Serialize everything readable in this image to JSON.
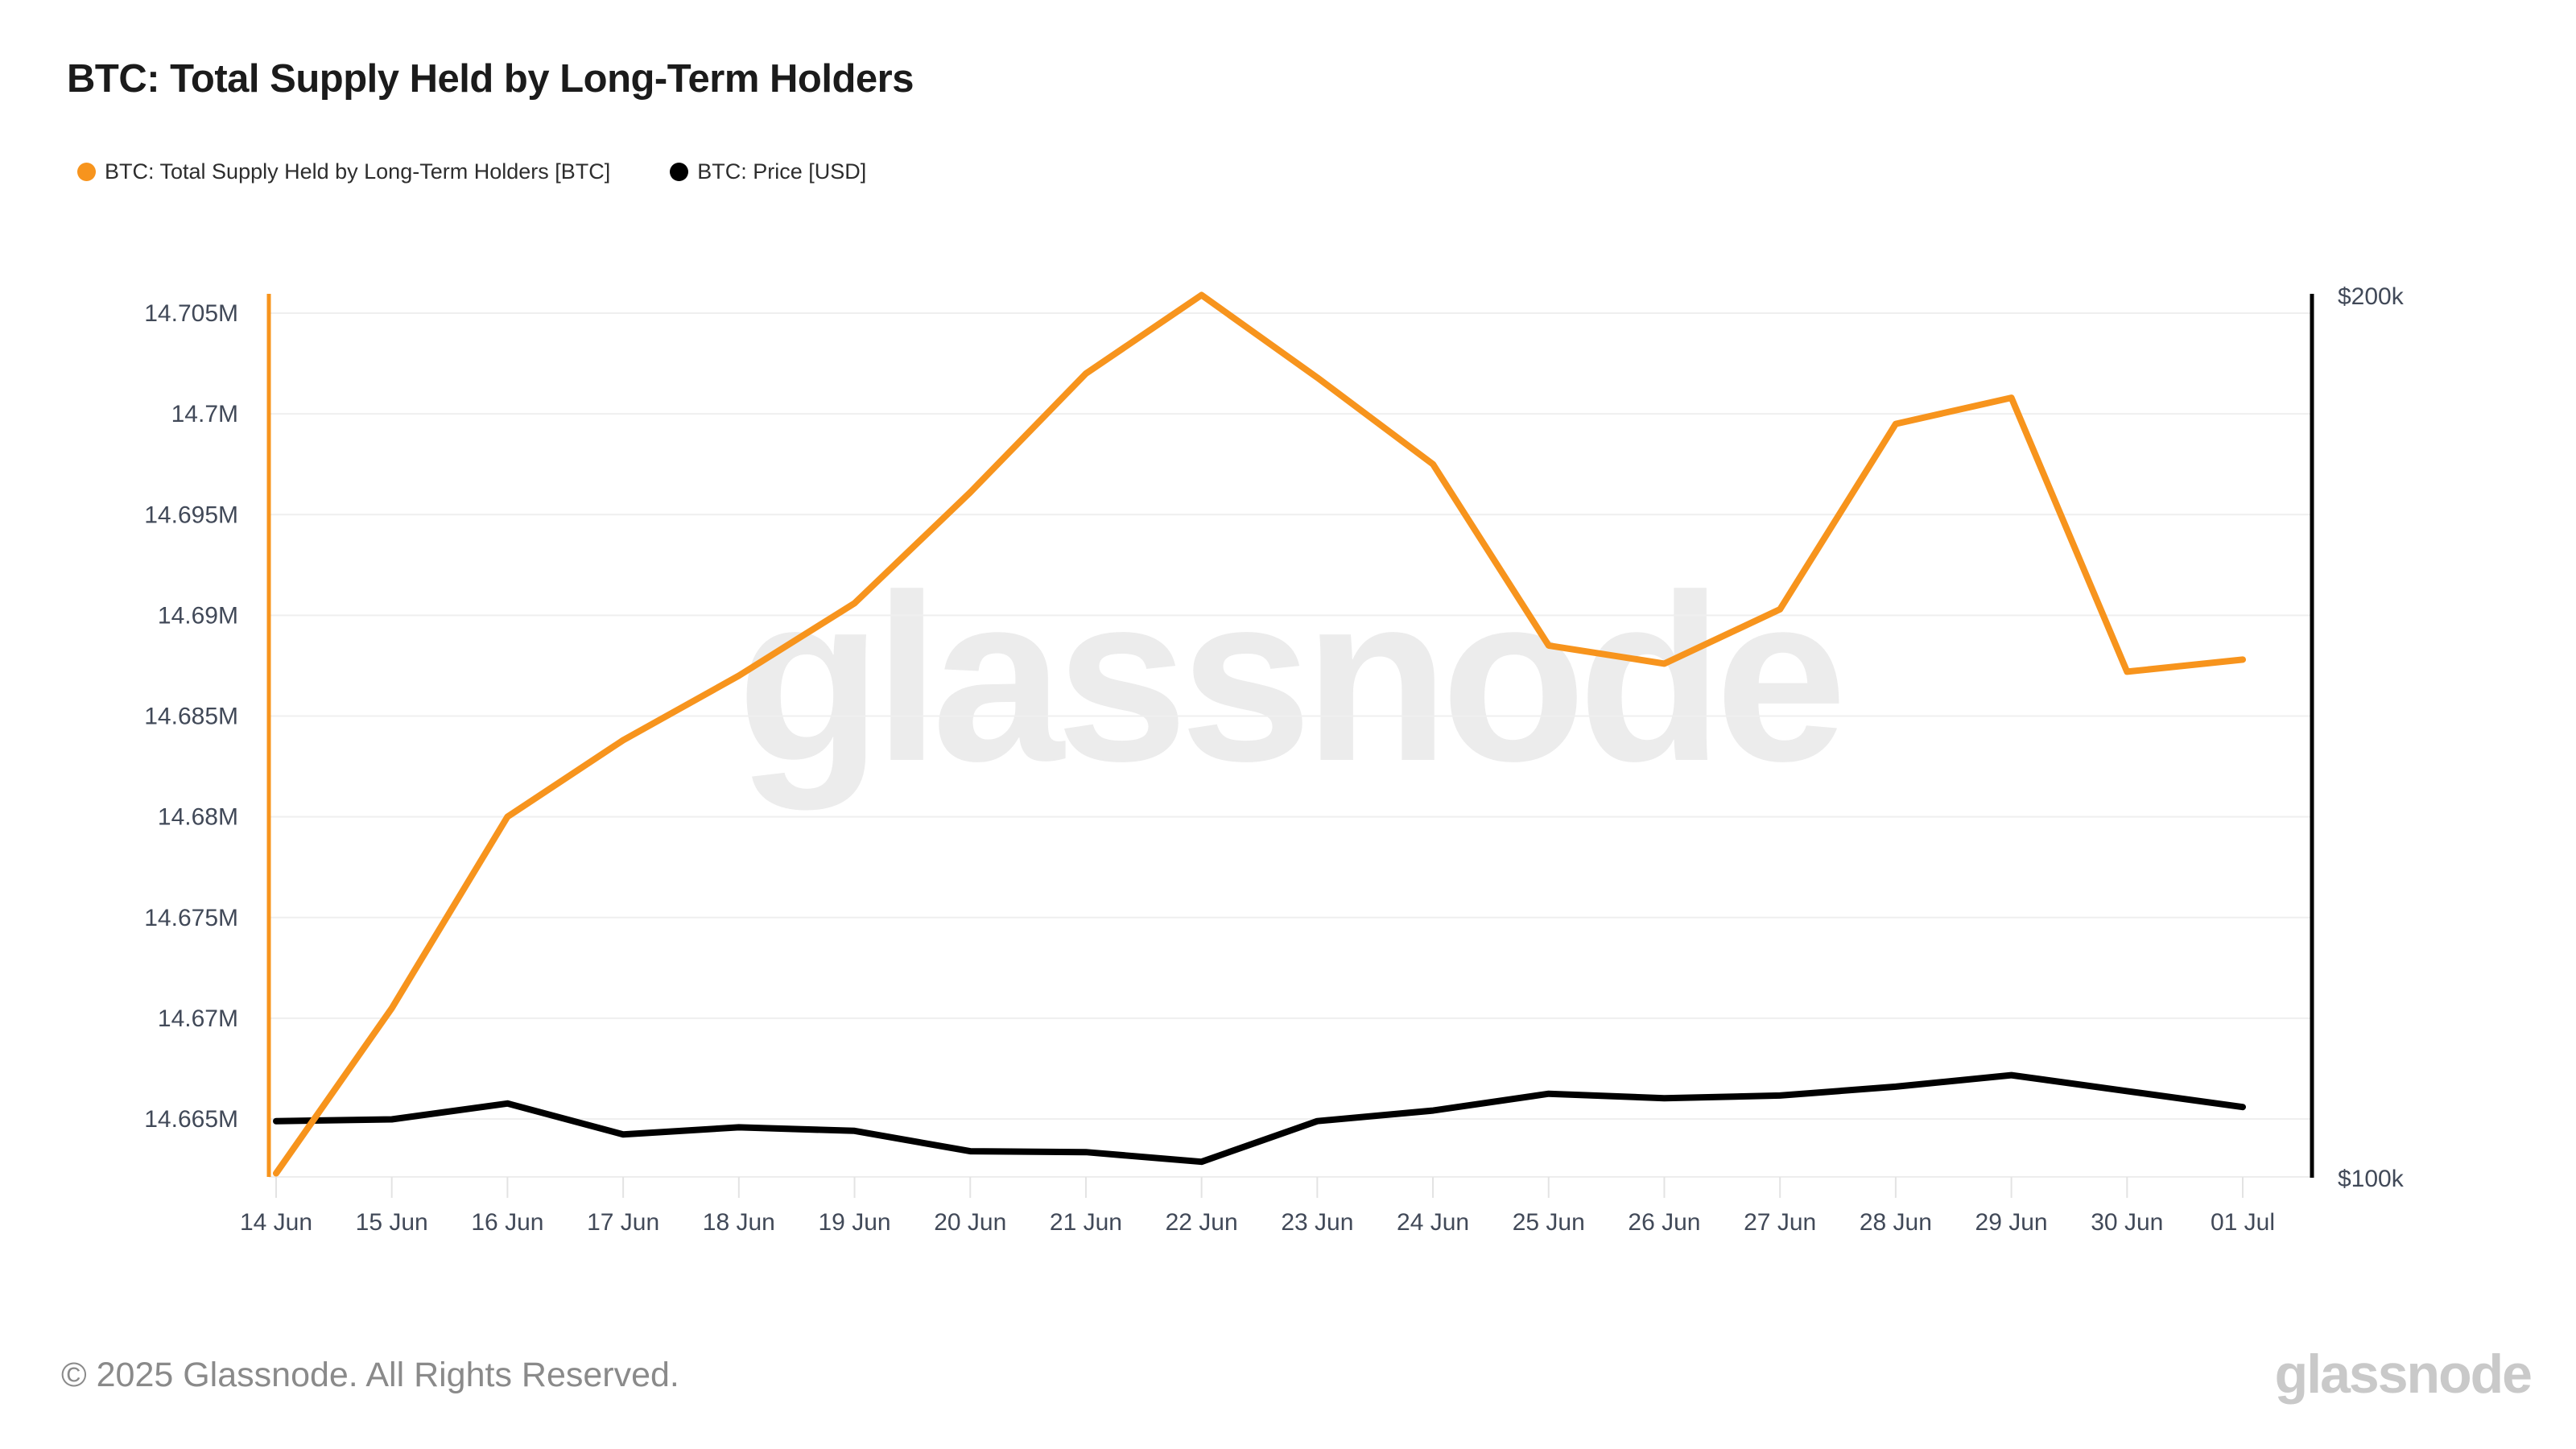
{
  "page": {
    "title": "BTC: Total Supply Held by Long-Term Holders"
  },
  "legend": {
    "items": [
      {
        "label": "BTC: Total Supply Held by Long-Term Holders [BTC]",
        "color": "#F7941D"
      },
      {
        "label": "BTC: Price [USD]",
        "color": "#000000"
      }
    ]
  },
  "watermark_text": "glassnode",
  "footer": {
    "copyright_text": "© 2025 Glassnode. All Rights Reserved.",
    "brand_logo_text": "glassnode"
  },
  "chart_data": {
    "type": "line",
    "title": "BTC: Total Supply Held by Long-Term Holders",
    "categories": [
      "14 Jun",
      "15 Jun",
      "16 Jun",
      "17 Jun",
      "18 Jun",
      "19 Jun",
      "20 Jun",
      "21 Jun",
      "22 Jun",
      "23 Jun",
      "24 Jun",
      "25 Jun",
      "26 Jun",
      "27 Jun",
      "28 Jun",
      "29 Jun",
      "30 Jun",
      "01 Jul"
    ],
    "series": [
      {
        "name": "BTC: Total Supply Held by Long-Term Holders [BTC]",
        "yaxis": "left",
        "color": "#F7941D",
        "unit": "M BTC",
        "values": [
          14.6623,
          14.6705,
          14.68,
          14.6838,
          14.687,
          14.6906,
          14.6961,
          14.702,
          14.7059,
          14.7018,
          14.6975,
          14.6885,
          14.6876,
          14.6903,
          14.6995,
          14.7008,
          14.6872,
          14.6878
        ]
      },
      {
        "name": "BTC: Price [USD]",
        "yaxis": "right",
        "color": "#000000",
        "unit": "thousand USD",
        "values": [
          106.4,
          106.6,
          108.4,
          104.9,
          105.7,
          105.3,
          103.0,
          102.9,
          101.8,
          106.4,
          107.6,
          109.5,
          109.0,
          109.3,
          110.3,
          111.6,
          109.8,
          108.0
        ]
      }
    ],
    "left_axis": {
      "unit": "M",
      "tick_labels": [
        "14.705M",
        "14.7M",
        "14.695M",
        "14.69M",
        "14.685M",
        "14.68M",
        "14.675M",
        "14.67M",
        "14.665M"
      ],
      "tick_values": [
        14.705,
        14.7,
        14.695,
        14.69,
        14.685,
        14.68,
        14.675,
        14.67,
        14.665
      ]
    },
    "right_axis": {
      "unit": "$k",
      "tick_labels": [
        "$200k",
        "$100k"
      ],
      "tick_values": [
        200,
        100
      ]
    },
    "grid": "horizontal",
    "legend_position": "top-left",
    "xlabel": "",
    "ylabel": ""
  }
}
